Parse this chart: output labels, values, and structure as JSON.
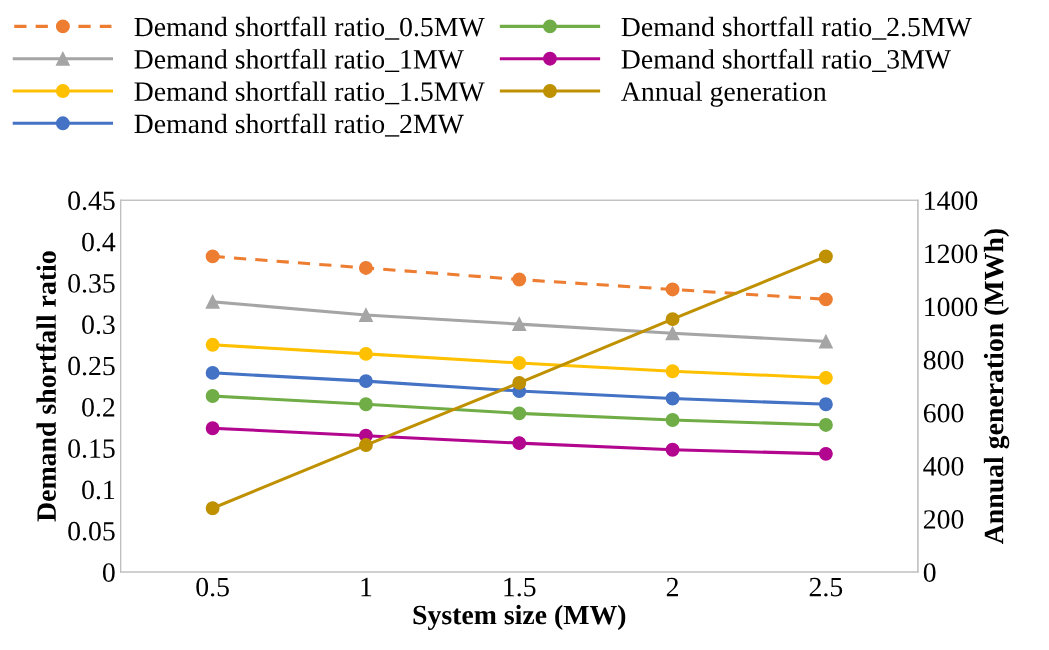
{
  "chart_data": {
    "type": "line",
    "xlabel": "System size (MW)",
    "ylabel": "Demand shortfall ratio",
    "y2label": "Annual generation (MWh)",
    "categories": [
      "0.5",
      "1",
      "1.5",
      "2",
      "2.5"
    ],
    "ylim": [
      0,
      0.45
    ],
    "yticks": [
      {
        "value": 0,
        "label": "0"
      },
      {
        "value": 0.05,
        "label": "0.05"
      },
      {
        "value": 0.1,
        "label": "0.1"
      },
      {
        "value": 0.15,
        "label": "0.15"
      },
      {
        "value": 0.2,
        "label": "0.2"
      },
      {
        "value": 0.25,
        "label": "0.25"
      },
      {
        "value": 0.3,
        "label": "0.3"
      },
      {
        "value": 0.35,
        "label": "0.35"
      },
      {
        "value": 0.4,
        "label": "0.4"
      },
      {
        "value": 0.45,
        "label": "0.45"
      }
    ],
    "y2lim": [
      0,
      1400
    ],
    "y2ticks": [
      0,
      200,
      400,
      600,
      800,
      1000,
      1200,
      1400
    ],
    "legend": "top",
    "grid": false,
    "series": [
      {
        "name": "Demand shortfall ratio_0.5MW",
        "color": "#ed7d31",
        "marker": "circle",
        "line_style": "dashed",
        "values": [
          0.382,
          0.368,
          0.354,
          0.342,
          0.33
        ]
      },
      {
        "name": "Demand shortfall ratio_1MW",
        "color": "#a5a5a5",
        "marker": "triangle",
        "line_style": "solid",
        "values": [
          0.327,
          0.311,
          0.3,
          0.289,
          0.279
        ]
      },
      {
        "name": "Demand shortfall ratio_1.5MW",
        "color": "#ffc000",
        "marker": "circle",
        "line_style": "solid",
        "values": [
          0.275,
          0.264,
          0.253,
          0.243,
          0.235
        ]
      },
      {
        "name": "Demand shortfall ratio_2MW",
        "color": "#4472c4",
        "marker": "circle",
        "line_style": "solid",
        "values": [
          0.241,
          0.231,
          0.219,
          0.21,
          0.203
        ]
      },
      {
        "name": "Demand shortfall ratio_2.5MW",
        "color": "#70ad47",
        "marker": "circle",
        "line_style": "solid",
        "values": [
          0.213,
          0.203,
          0.192,
          0.184,
          0.178
        ]
      },
      {
        "name": "Demand shortfall ratio_3MW",
        "color": "#b3068f",
        "marker": "circle",
        "line_style": "solid",
        "values": [
          0.174,
          0.165,
          0.156,
          0.148,
          0.143
        ]
      },
      {
        "name": "Annual generation",
        "color": "#bf9000",
        "marker": "circle",
        "line_style": "solid",
        "axis": "y2",
        "values": [
          240,
          478,
          712,
          952,
          1188
        ]
      }
    ]
  }
}
